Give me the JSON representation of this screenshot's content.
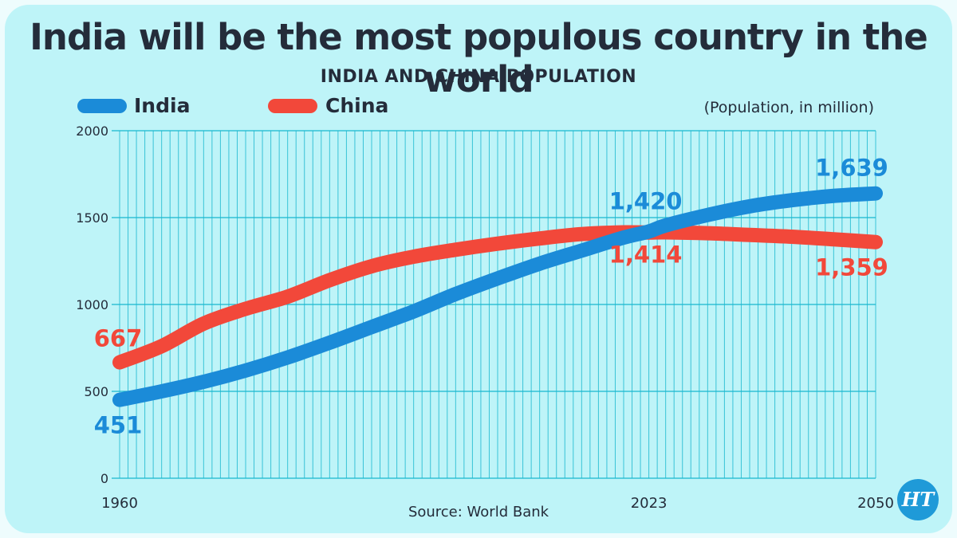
{
  "title": "India will be the most populous country in the world",
  "subtitle": "INDIA AND CHINA POPULATION",
  "unit_label": "(Population, in million)",
  "source": "Source: World Bank",
  "logo_text": "HT",
  "colors": {
    "india": "#1b8bd8",
    "china": "#f2483a",
    "text": "#242c3a",
    "grid": "#19b7cf",
    "background": "#bef4f8"
  },
  "chart_data": {
    "type": "line",
    "title": "INDIA AND CHINA POPULATION",
    "ylabel": "(Population, in million)",
    "xlabel": "",
    "ylim": [
      0,
      2000
    ],
    "yticks": [
      "2000",
      "1500",
      "1000",
      "500",
      "0"
    ],
    "xticks": [
      "1960",
      "2023",
      "2050"
    ],
    "xlim": [
      1960,
      2050
    ],
    "legend_position": "top-left",
    "grid": true,
    "series": [
      {
        "name": "India",
        "color": "#1b8bd8",
        "x": [
          1960,
          1965,
          1970,
          1975,
          1980,
          1985,
          1990,
          1995,
          2000,
          2005,
          2010,
          2015,
          2020,
          2023,
          2025,
          2030,
          2035,
          2040,
          2045,
          2050
        ],
        "values": [
          451,
          500,
          555,
          620,
          695,
          780,
          870,
          960,
          1060,
          1150,
          1235,
          1310,
          1385,
          1420,
          1455,
          1515,
          1565,
          1600,
          1625,
          1639
        ],
        "labels": [
          {
            "x": 1960,
            "text": "451"
          },
          {
            "x": 2023,
            "text": "1,420"
          },
          {
            "x": 2050,
            "text": "1,639"
          }
        ]
      },
      {
        "name": "China",
        "color": "#f2483a",
        "x": [
          1960,
          1965,
          1970,
          1975,
          1980,
          1985,
          1990,
          1995,
          2000,
          2005,
          2010,
          2015,
          2020,
          2023,
          2025,
          2030,
          2035,
          2040,
          2045,
          2050
        ],
        "values": [
          667,
          760,
          890,
          975,
          1045,
          1140,
          1220,
          1275,
          1315,
          1350,
          1380,
          1405,
          1415,
          1414,
          1415,
          1410,
          1400,
          1390,
          1375,
          1359
        ],
        "labels": [
          {
            "x": 1960,
            "text": "667"
          },
          {
            "x": 2023,
            "text": "1,414"
          },
          {
            "x": 2050,
            "text": "1,359"
          }
        ]
      }
    ]
  }
}
